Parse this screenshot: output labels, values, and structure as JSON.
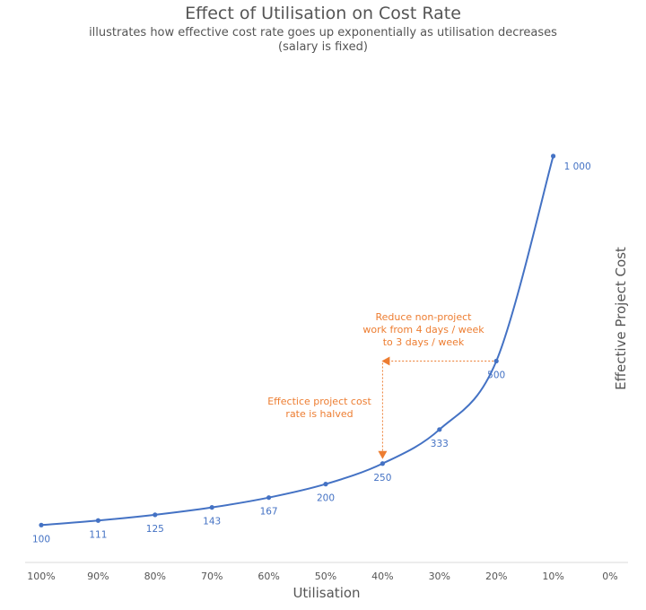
{
  "chart_data": {
    "type": "line",
    "title": "Effect of Utilisation on Cost Rate",
    "subtitle_line1": "illustrates how effective cost rate goes up exponentially as utilisation decreases",
    "subtitle_line2": "(salary is fixed)",
    "xlabel": "Utilisation",
    "ylabel": "Effective Project Cost",
    "x": [
      100,
      90,
      80,
      70,
      60,
      50,
      40,
      30,
      20,
      10
    ],
    "y": [
      100,
      111,
      125,
      143,
      167,
      200,
      250,
      333,
      500,
      1000
    ],
    "point_labels": [
      "100",
      "111",
      "125",
      "143",
      "167",
      "200",
      "250",
      "333",
      "500",
      "1 000"
    ],
    "x_ticks": [
      100,
      90,
      80,
      70,
      60,
      50,
      40,
      30,
      20,
      10,
      0
    ],
    "x_tick_labels": [
      "100%",
      "90%",
      "80%",
      "70%",
      "60%",
      "50%",
      "40%",
      "30%",
      "20%",
      "10%",
      "0%"
    ],
    "xlim": [
      100,
      0
    ],
    "ylim": [
      0,
      1000
    ],
    "grid": false,
    "line_color": "#4472c4",
    "annotation_color": "#ed7d31",
    "annotations": [
      {
        "text_lines": [
          "Reduce non-project",
          "work from 4 days / week",
          "to 3 days / week"
        ],
        "arrow_from": [
          20,
          500
        ],
        "arrow_to": [
          40,
          500
        ]
      },
      {
        "text_lines": [
          "Effectice project cost",
          "rate is halved"
        ],
        "arrow_from": [
          40,
          500
        ],
        "arrow_to": [
          40,
          250
        ]
      }
    ]
  }
}
